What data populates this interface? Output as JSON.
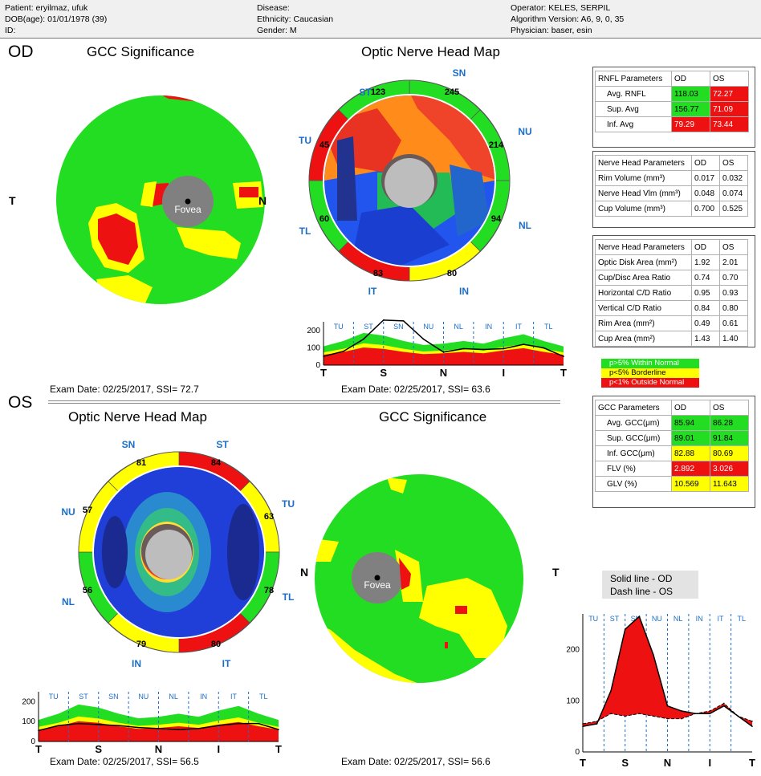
{
  "header": {
    "patient": "Patient: eryilmaz, ufuk",
    "dob": "DOB(age): 01/01/1978 (39)",
    "id": "ID:",
    "disease": "Disease:",
    "ethnicity": "Ethnicity: Caucasian",
    "gender": "Gender: M",
    "operator": "Operator: KELES, SERPIL",
    "algorithm": "Algorithm Version: A6, 9, 0, 35",
    "physician": "Physician: baser, esin"
  },
  "od": {
    "label": "OD",
    "gcc_title": "GCC Significance",
    "onh_title": "Optic Nerve Head Map",
    "gcc_T": "T",
    "gcc_N": "N",
    "fovea": "Fovea",
    "exam_gcc": "Exam Date: 02/25/2017, SSI= 72.7",
    "exam_onh": "Exam Date: 02/25/2017, SSI= 63.6",
    "sectors": {
      "ST": "ST",
      "SN": "SN",
      "NU": "NU",
      "NL": "NL",
      "IN": "IN",
      "IT": "IT",
      "TL": "TL",
      "TU": "TU"
    },
    "values": {
      "st": "123",
      "sn": "245",
      "nu": "214",
      "nl": "94",
      "in": "80",
      "it": "83",
      "tl": "60",
      "tu": "45"
    }
  },
  "os": {
    "label": "OS",
    "onh_title": "Optic Nerve Head Map",
    "gcc_title": "GCC Significance",
    "gcc_T": "T",
    "gcc_N": "N",
    "fovea": "Fovea",
    "exam_onh": "Exam Date: 02/25/2017, SSI= 56.5",
    "exam_gcc": "Exam Date: 02/25/2017, SSI= 56.6",
    "sectors": {
      "SN": "SN",
      "ST": "ST",
      "TU": "TU",
      "TL": "TL",
      "IT": "IT",
      "IN": "IN",
      "NL": "NL",
      "NU": "NU"
    },
    "values": {
      "sn": "81",
      "st": "84",
      "tu": "63",
      "tl": "78",
      "it": "80",
      "in": "79",
      "nl": "56",
      "nu": "57"
    }
  },
  "rnfl_table": {
    "headers": [
      "RNFL Parameters",
      "OD",
      "OS"
    ],
    "rows": [
      {
        "label": "Avg. RNFL",
        "od": "118.03",
        "os": "72.27",
        "od_c": "#22dd22",
        "os_c": "#ee1111"
      },
      {
        "label": "Sup. Avg",
        "od": "156.77",
        "os": "71.09",
        "od_c": "#22dd22",
        "os_c": "#ee1111"
      },
      {
        "label": "Inf. Avg",
        "od": "79.29",
        "os": "73.44",
        "od_c": "#ee1111",
        "os_c": "#ee1111"
      }
    ]
  },
  "nh_table1": {
    "headers": [
      "Nerve Head Parameters",
      "OD",
      "OS"
    ],
    "rows": [
      {
        "label": "Rim Volume (mm³)",
        "od": "0.017",
        "os": "0.032"
      },
      {
        "label": "Nerve Head Vlm (mm³)",
        "od": "0.048",
        "os": "0.074"
      },
      {
        "label": "Cup Volume (mm³)",
        "od": "0.700",
        "os": "0.525"
      }
    ]
  },
  "nh_table2": {
    "headers": [
      "Nerve Head Parameters",
      "OD",
      "OS"
    ],
    "rows": [
      {
        "label": "Optic Disk Area (mm²)",
        "od": "1.92",
        "os": "2.01"
      },
      {
        "label": "Cup/Disc Area Ratio",
        "od": "0.74",
        "os": "0.70"
      },
      {
        "label": "Horizontal C/D Ratio",
        "od": "0.95",
        "os": "0.93"
      },
      {
        "label": "Vertical C/D Ratio",
        "od": "0.84",
        "os": "0.80"
      },
      {
        "label": "Rim Area (mm²)",
        "od": "0.49",
        "os": "0.61"
      },
      {
        "label": "Cup Area (mm²)",
        "od": "1.43",
        "os": "1.40"
      }
    ]
  },
  "legend": {
    "normal": "p>5% Within Normal",
    "borderline": "p<5% Borderline",
    "outside": "p<1% Outside Normal",
    "colors": {
      "normal": "#22dd22",
      "borderline": "#ffff00",
      "outside": "#ee1111"
    }
  },
  "gcc_table": {
    "headers": [
      "GCC Parameters",
      "OD",
      "OS"
    ],
    "rows": [
      {
        "label": "Avg. GCC(μm)",
        "od": "85.94",
        "os": "86.28",
        "od_c": "#22dd22",
        "os_c": "#22dd22"
      },
      {
        "label": "Sup. GCC(μm)",
        "od": "89.01",
        "os": "91.84",
        "od_c": "#22dd22",
        "os_c": "#22dd22"
      },
      {
        "label": "Inf. GCC(μm)",
        "od": "82.88",
        "os": "80.69",
        "od_c": "#ffff00",
        "os_c": "#ffff00"
      },
      {
        "label": "FLV (%)",
        "od": "2.892",
        "os": "3.026",
        "od_c": "#ee1111",
        "os_c": "#ee1111"
      },
      {
        "label": "GLV (%)",
        "od": "10.569",
        "os": "11.643",
        "od_c": "#ffff00",
        "os_c": "#ffff00"
      }
    ]
  },
  "comparison": {
    "t_label": "T",
    "solid": "Solid line - OD",
    "dash": "Dash line - OS"
  },
  "chart_data": [
    {
      "type": "line",
      "title": "",
      "sectors": [
        "TU",
        "ST",
        "SN",
        "NU",
        "NL",
        "IN",
        "IT",
        "TL"
      ],
      "x_ticks": [
        "T",
        "S",
        "N",
        "I",
        "T"
      ],
      "y_ticks": [
        "0",
        "100",
        "200"
      ],
      "ylim": [
        0,
        250
      ],
      "series": [
        {
          "values": [
            50,
            80,
            150,
            260,
            255,
            150,
            75,
            95,
            90,
            95,
            120,
            100,
            50
          ]
        }
      ]
    },
    {
      "type": "line",
      "title": "",
      "sectors": [
        "TU",
        "ST",
        "SN",
        "NU",
        "NL",
        "IN",
        "IT",
        "TL"
      ],
      "x_ticks": [
        "T",
        "S",
        "N",
        "I",
        "T"
      ],
      "y_ticks": [
        "0",
        "100",
        "200"
      ],
      "ylim": [
        0,
        250
      ],
      "series": [
        {
          "values": [
            55,
            80,
            90,
            85,
            80,
            70,
            65,
            60,
            65,
            80,
            90,
            90,
            60
          ]
        }
      ]
    },
    {
      "type": "line",
      "title": "",
      "sectors": [
        "TU",
        "ST",
        "SN",
        "NU",
        "NL",
        "IN",
        "IT",
        "TL"
      ],
      "x_ticks": [
        "T",
        "S",
        "N",
        "I",
        "T"
      ],
      "y_ticks": [
        "0",
        "100",
        "200"
      ],
      "ylim": [
        0,
        270
      ],
      "series": [
        {
          "name": "Solid line - OD",
          "values": [
            50,
            55,
            120,
            240,
            265,
            190,
            90,
            80,
            75,
            75,
            90,
            70,
            50
          ]
        },
        {
          "name": "Dash line - OS",
          "values": [
            55,
            60,
            75,
            70,
            75,
            70,
            65,
            65,
            75,
            80,
            95,
            70,
            60
          ]
        }
      ]
    }
  ]
}
